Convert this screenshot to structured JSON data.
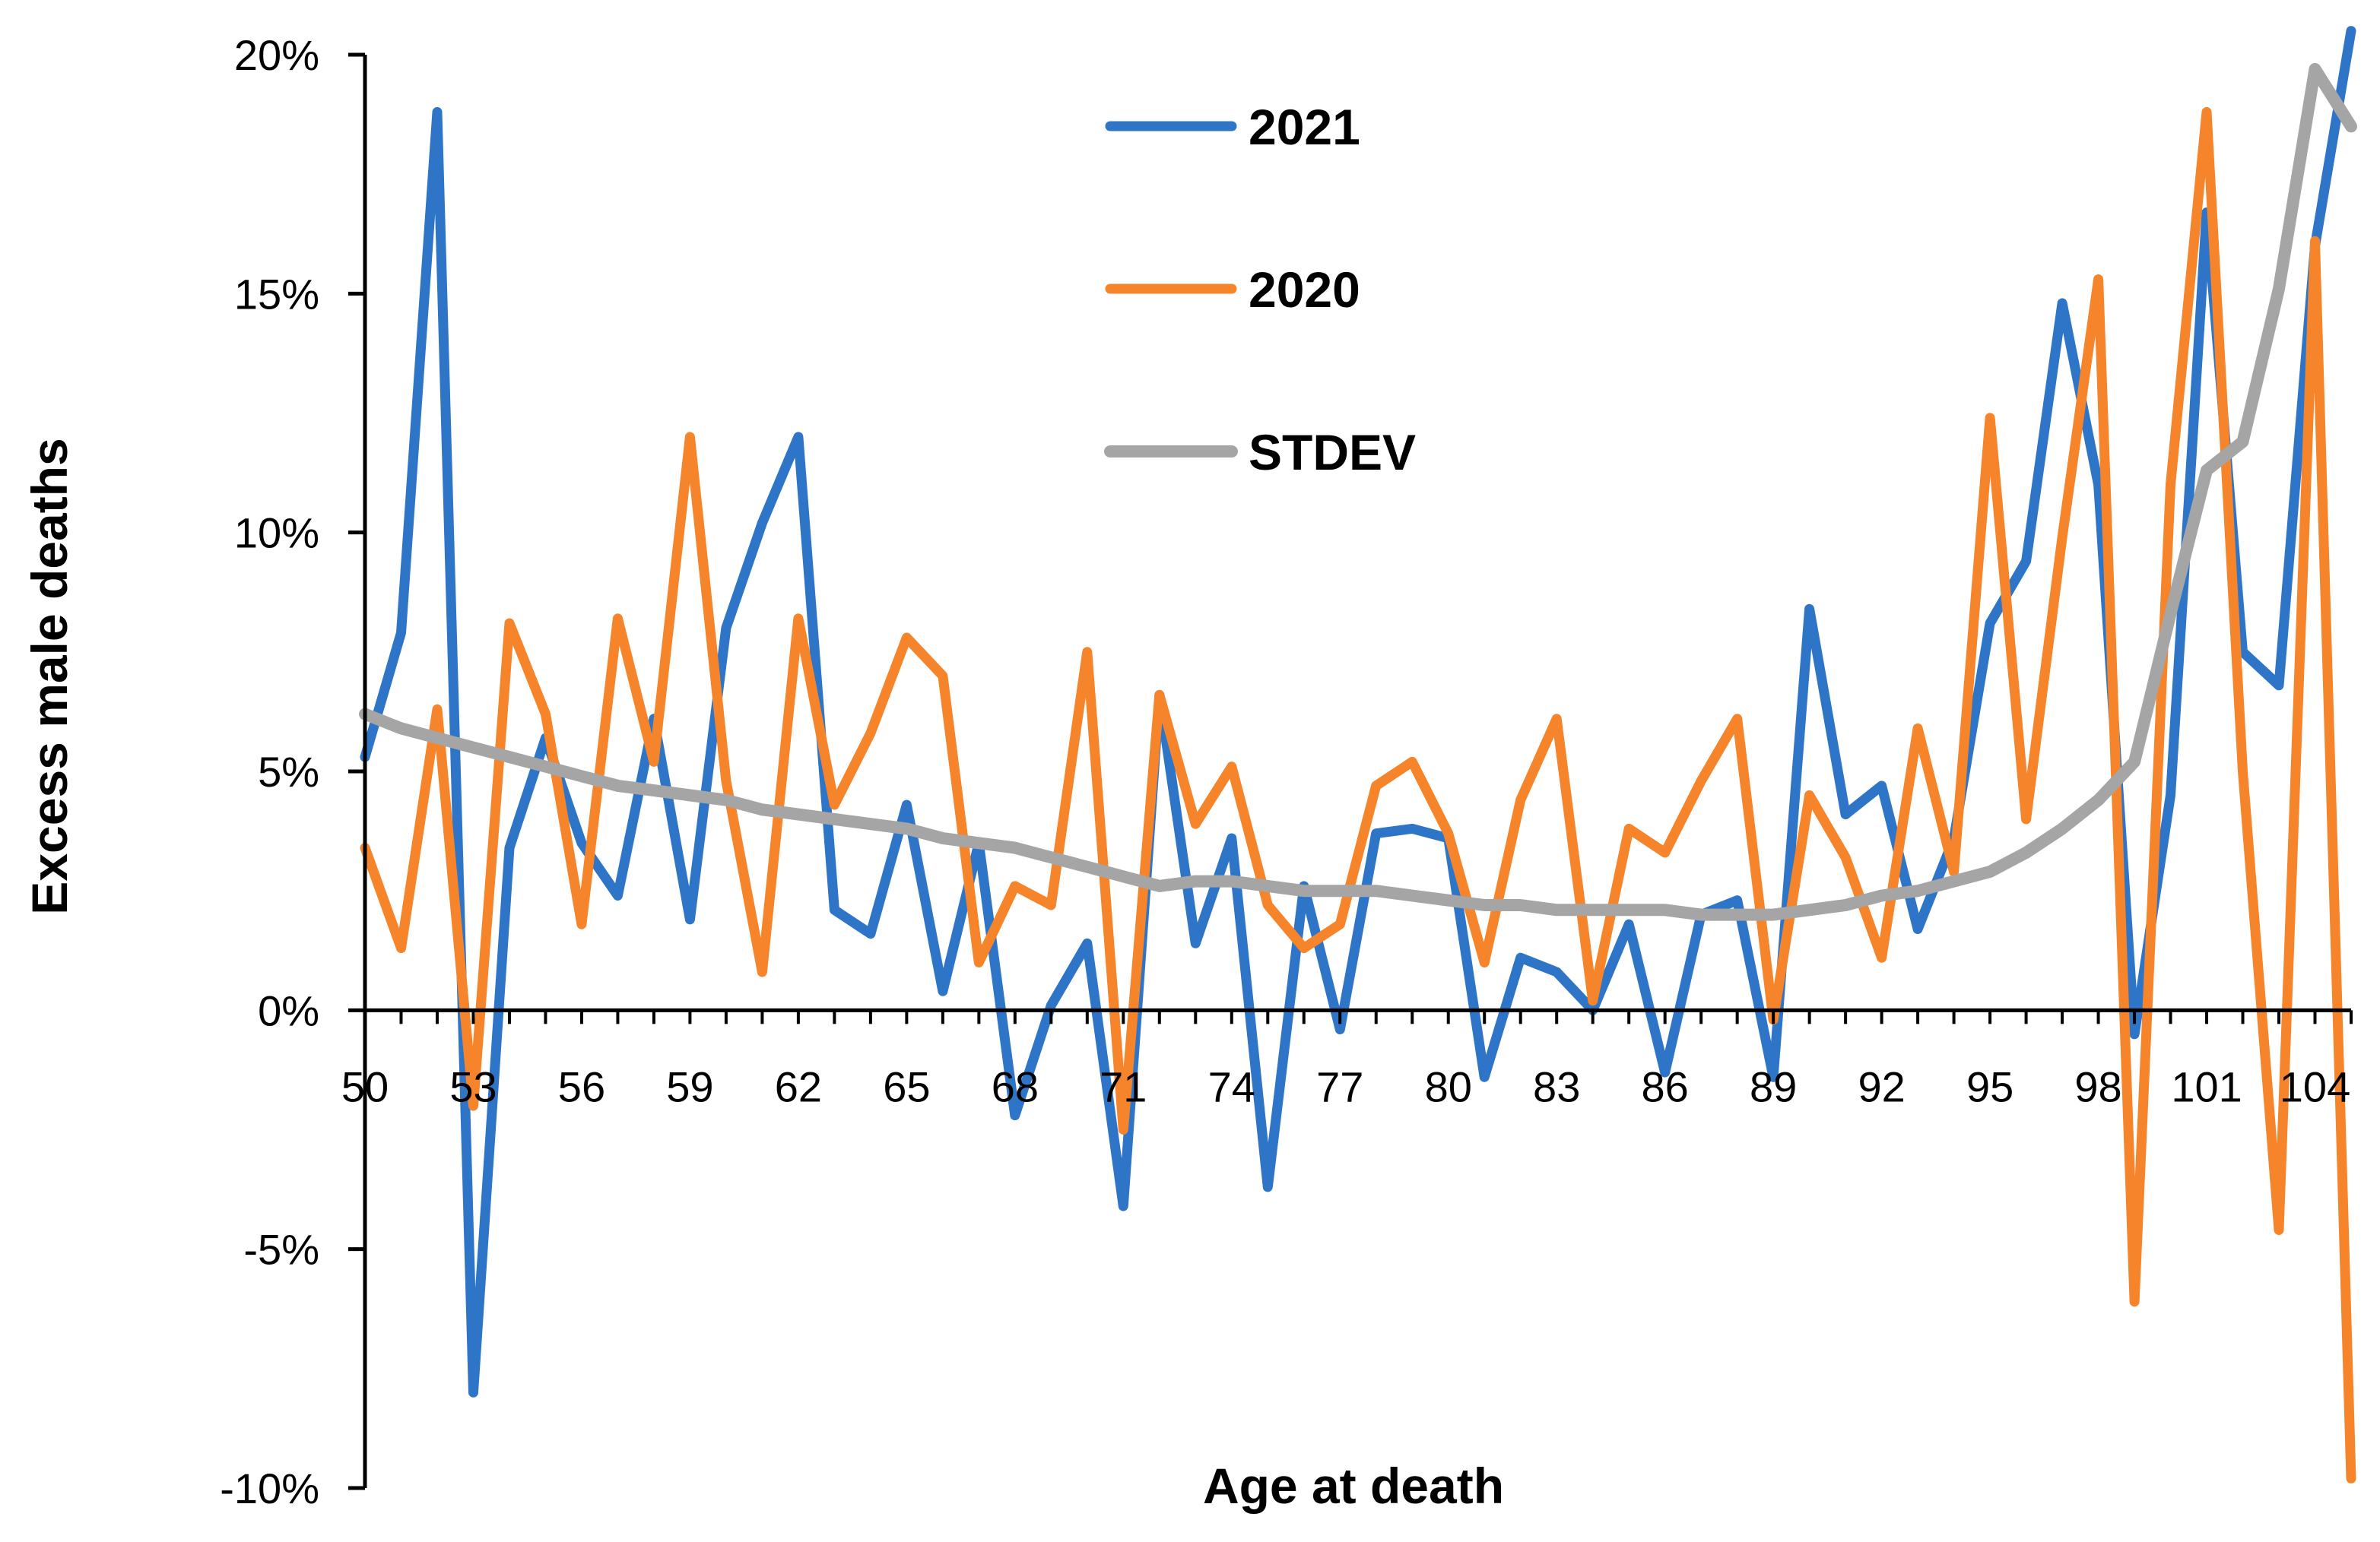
{
  "chart_data": {
    "type": "line",
    "title": "",
    "xlabel": "Age at death",
    "ylabel": "Excess male deaths",
    "x": [
      50,
      51,
      52,
      53,
      54,
      55,
      56,
      57,
      58,
      59,
      60,
      61,
      62,
      63,
      64,
      65,
      66,
      67,
      68,
      69,
      70,
      71,
      72,
      73,
      74,
      75,
      76,
      77,
      78,
      79,
      80,
      81,
      82,
      83,
      84,
      85,
      86,
      87,
      88,
      89,
      90,
      91,
      92,
      93,
      94,
      95,
      96,
      97,
      98,
      99,
      100,
      101,
      102,
      103,
      104,
      105
    ],
    "x_tick_labels": [
      "50",
      "53",
      "56",
      "59",
      "62",
      "65",
      "68",
      "71",
      "74",
      "77",
      "80",
      "83",
      "86",
      "89",
      "92",
      "95",
      "98",
      "101",
      "104"
    ],
    "y_tick_labels": [
      "20%",
      "15%",
      "10%",
      "5%",
      "0%",
      "-5%",
      "-10%"
    ],
    "ylim": [
      -0.1,
      0.2
    ],
    "grid": false,
    "legend_position": "top-center",
    "series": [
      {
        "name": "2021",
        "color": "#2e75c8",
        "values": [
          0.053,
          0.079,
          0.188,
          -0.08,
          0.034,
          0.057,
          0.035,
          0.024,
          0.061,
          0.019,
          0.08,
          0.102,
          0.12,
          0.021,
          0.016,
          0.043,
          0.004,
          0.035,
          -0.022,
          0.001,
          0.014,
          -0.041,
          0.066,
          0.014,
          0.036,
          -0.037,
          0.026,
          -0.004,
          0.037,
          0.038,
          0.036,
          -0.014,
          0.011,
          0.008,
          0.0,
          0.018,
          -0.013,
          0.02,
          0.023,
          -0.014,
          0.084,
          0.041,
          0.047,
          0.017,
          0.036,
          0.081,
          0.094,
          0.148,
          0.11,
          -0.005,
          0.045,
          0.167,
          0.075,
          0.068,
          0.16,
          0.205
        ]
      },
      {
        "name": "2020",
        "color": "#f5842a",
        "values": [
          0.034,
          0.013,
          0.063,
          -0.02,
          0.081,
          0.062,
          0.018,
          0.082,
          0.052,
          0.12,
          0.048,
          0.008,
          0.082,
          0.043,
          0.058,
          0.078,
          0.07,
          0.01,
          0.026,
          0.022,
          0.075,
          -0.025,
          0.066,
          0.039,
          0.051,
          0.022,
          0.013,
          0.018,
          0.047,
          0.052,
          0.037,
          0.01,
          0.044,
          0.061,
          0.002,
          0.038,
          0.033,
          0.048,
          0.061,
          -0.002,
          0.045,
          0.032,
          0.011,
          0.059,
          0.029,
          0.124,
          0.04,
          0.099,
          0.153,
          -0.061,
          0.11,
          0.188,
          0.05,
          -0.046,
          0.161,
          -0.098
        ]
      },
      {
        "name": "STDEV",
        "color": "#a5a5a5",
        "values": [
          0.062,
          0.059,
          0.057,
          0.055,
          0.053,
          0.051,
          0.049,
          0.047,
          0.046,
          0.045,
          0.044,
          0.042,
          0.041,
          0.04,
          0.039,
          0.038,
          0.036,
          0.035,
          0.034,
          0.032,
          0.03,
          0.028,
          0.026,
          0.027,
          0.027,
          0.026,
          0.025,
          0.025,
          0.025,
          0.024,
          0.023,
          0.022,
          0.022,
          0.021,
          0.021,
          0.021,
          0.021,
          0.02,
          0.02,
          0.02,
          0.021,
          0.022,
          0.024,
          0.025,
          0.027,
          0.029,
          0.033,
          0.038,
          0.044,
          0.052,
          0.083,
          0.113,
          0.119,
          0.151,
          0.197,
          0.185
        ]
      }
    ]
  }
}
